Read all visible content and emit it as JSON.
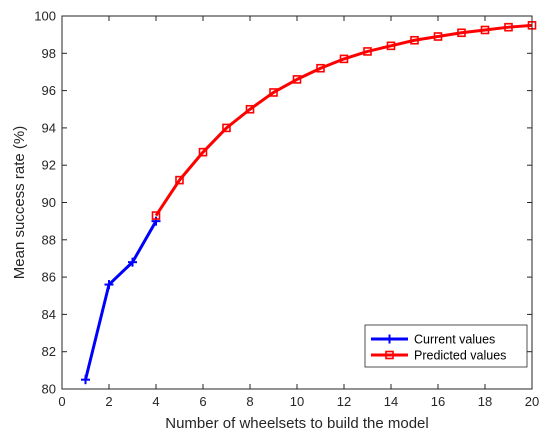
{
  "chart_data": {
    "type": "line",
    "title": "",
    "xlabel": "Number of wheelsets to build the model",
    "ylabel": "Mean success rate (%)",
    "xlim": [
      0,
      20
    ],
    "ylim": [
      80,
      100
    ],
    "xticks": [
      0,
      2,
      4,
      6,
      8,
      10,
      12,
      14,
      16,
      18,
      20
    ],
    "yticks": [
      80,
      82,
      84,
      86,
      88,
      90,
      92,
      94,
      96,
      98,
      100
    ],
    "grid": false,
    "legend_position": "bottom-right",
    "series": [
      {
        "name": "Current values",
        "color": "#0000ff",
        "marker": "plus",
        "x": [
          1,
          2,
          3,
          4
        ],
        "y": [
          80.5,
          85.6,
          86.8,
          89.0
        ]
      },
      {
        "name": "Predicted values",
        "color": "#ff0000",
        "marker": "square",
        "x": [
          4,
          5,
          6,
          7,
          8,
          9,
          10,
          11,
          12,
          13,
          14,
          15,
          16,
          17,
          18,
          19,
          20
        ],
        "y": [
          89.3,
          91.2,
          92.7,
          94.0,
          95.0,
          95.9,
          96.6,
          97.2,
          97.7,
          98.1,
          98.4,
          98.7,
          98.9,
          99.1,
          99.25,
          99.4,
          99.5
        ]
      }
    ]
  }
}
